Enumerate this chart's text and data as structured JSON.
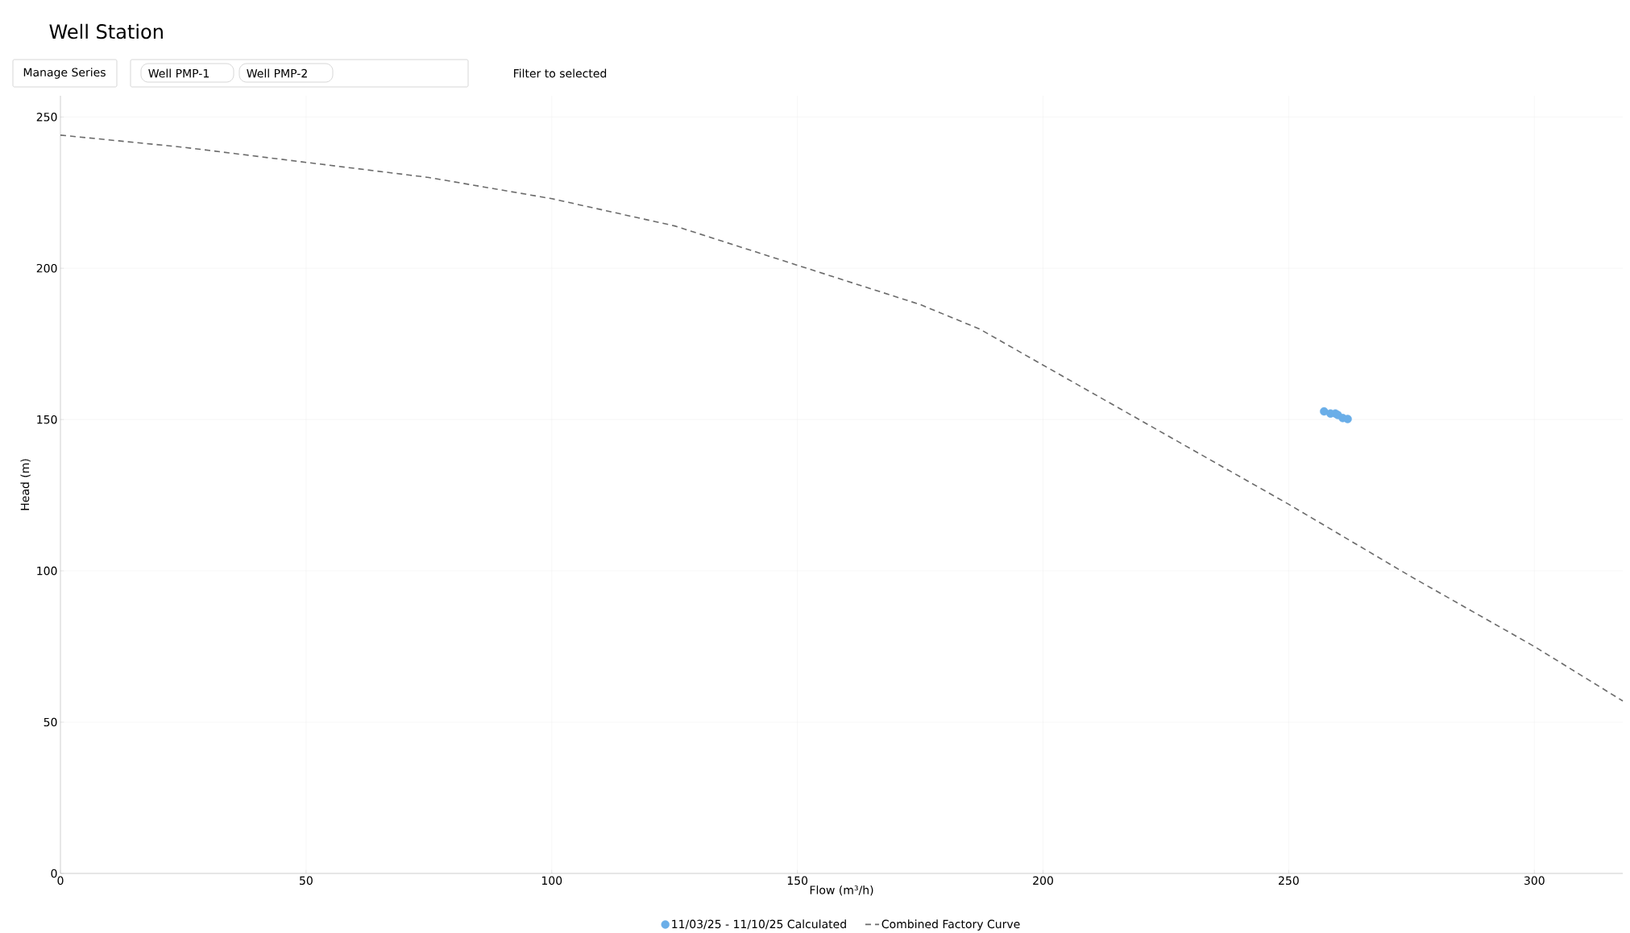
{
  "chart_data": {
    "type": "scatter",
    "title": "Well Station",
    "annotations": [
      "Manage Series",
      "Well PMP-1",
      "Well PMP-2",
      "Filter to selected"
    ],
    "xlabel": "Flow (m³/h)",
    "ylabel": "Head (m)",
    "xlim": [
      0,
      318
    ],
    "ylim": [
      0,
      257
    ],
    "xticks": [
      0,
      50,
      100,
      150,
      200,
      250,
      300
    ],
    "yticks": [
      0,
      50,
      100,
      150,
      200,
      250
    ],
    "grid": true,
    "legend": "bottom",
    "series": [
      {
        "name": "11/03/25 - 11/10/25 Calculated",
        "color": "#6aaee8",
        "marker": "circle",
        "x": [
          257.2,
          258.5,
          259.5,
          260,
          261,
          262
        ],
        "values": [
          152.7,
          152,
          152,
          151.5,
          150.5,
          150.2
        ]
      },
      {
        "name": "Combined Factory Curve",
        "type": "line",
        "color": "#6b6b6b",
        "line_style": "dashed",
        "marker": "none",
        "x": [
          0,
          25,
          50,
          75,
          100,
          125,
          150,
          175,
          187,
          200,
          225,
          250,
          275,
          300,
          318
        ],
        "values": [
          244,
          240,
          235,
          230,
          223,
          214,
          201,
          188,
          180,
          168,
          145,
          122,
          98,
          75,
          57
        ]
      }
    ]
  }
}
